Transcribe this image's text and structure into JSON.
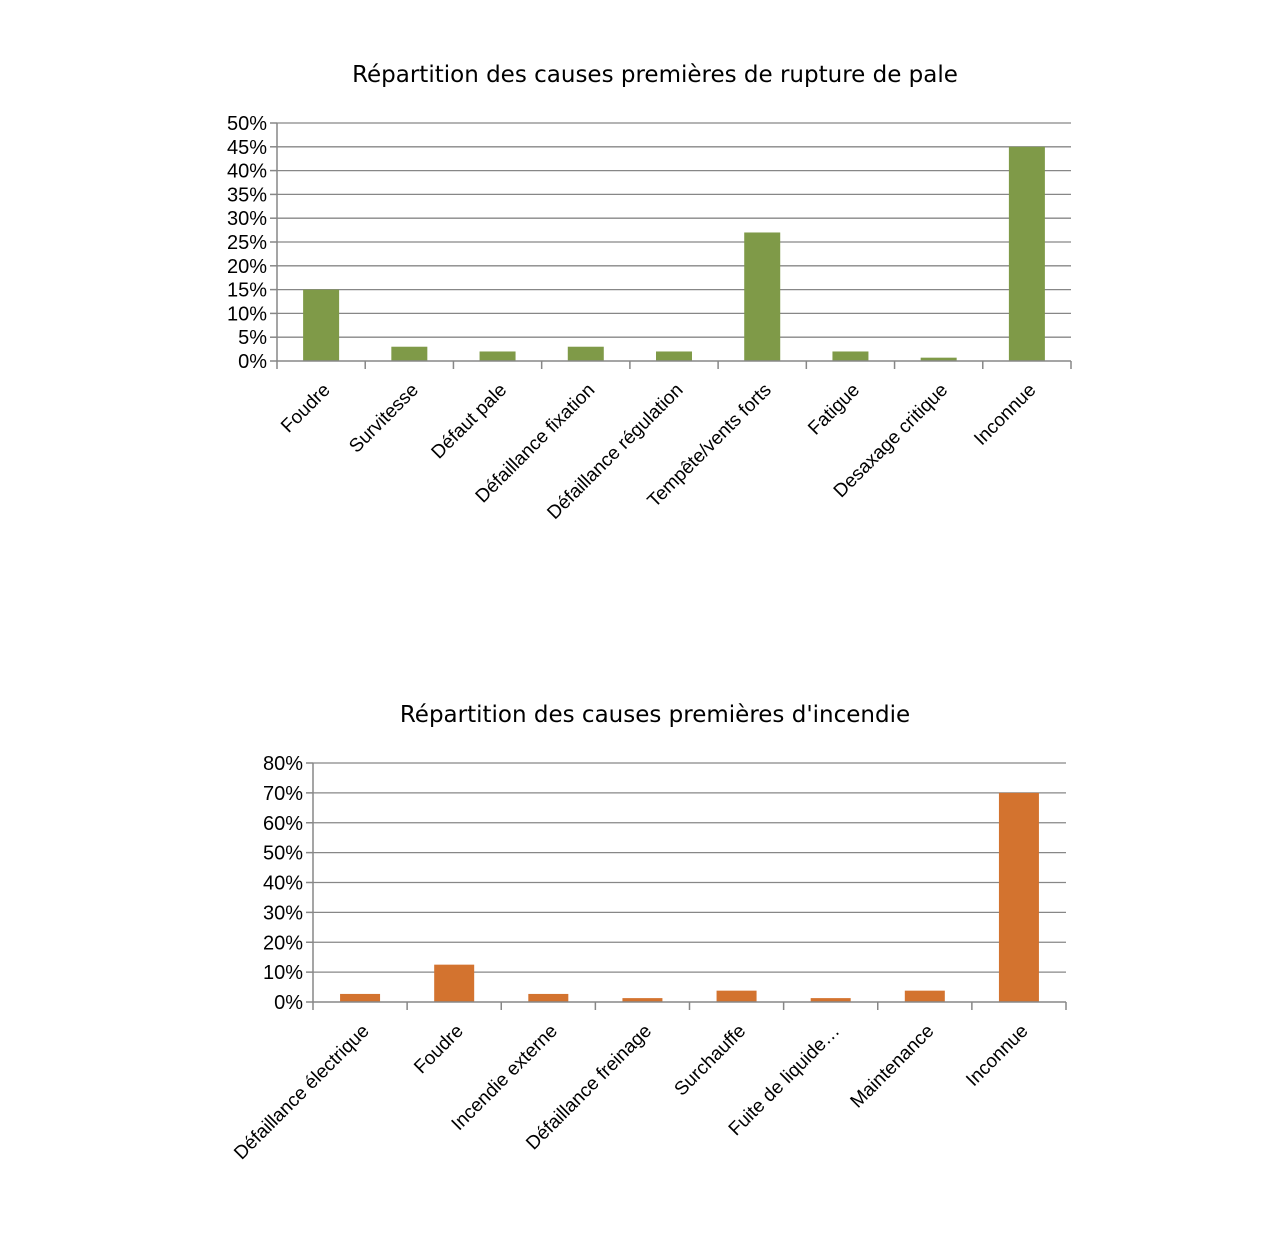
{
  "chart_data": [
    {
      "type": "bar",
      "title": "Répartition des causes premières de rupture de pale",
      "categories": [
        "Foudre",
        "Survitesse",
        "Défaut pale",
        "Défaillance fixation",
        "Défaillance régulation",
        "Tempête/vents forts",
        "Fatigue",
        "Desaxage critique",
        "Inconnue"
      ],
      "values": [
        15,
        3,
        2,
        3,
        2,
        27,
        2,
        0.7,
        45
      ],
      "y_ticks": [
        "0%",
        "5%",
        "10%",
        "15%",
        "20%",
        "25%",
        "30%",
        "35%",
        "40%",
        "45%",
        "50%"
      ],
      "ylim": [
        0,
        50
      ],
      "xlabel": "",
      "ylabel": "",
      "grid": true,
      "bar_color": "#7F9A48"
    },
    {
      "type": "bar",
      "title": "Répartition des causes premières d'incendie",
      "categories": [
        "Défaillance électrique",
        "Foudre",
        "Incendie externe",
        "Défaillance freinage",
        "Surchauffe",
        "Fuite de liquide…",
        "Maintenance",
        "Inconnue"
      ],
      "values": [
        2.7,
        12.5,
        2.7,
        1.3,
        3.8,
        1.3,
        3.8,
        70
      ],
      "y_ticks": [
        "0%",
        "10%",
        "20%",
        "30%",
        "40%",
        "50%",
        "60%",
        "70%",
        "80%"
      ],
      "ylim": [
        0,
        80
      ],
      "xlabel": "",
      "ylabel": "",
      "grid": true,
      "bar_color": "#D3732F"
    }
  ]
}
